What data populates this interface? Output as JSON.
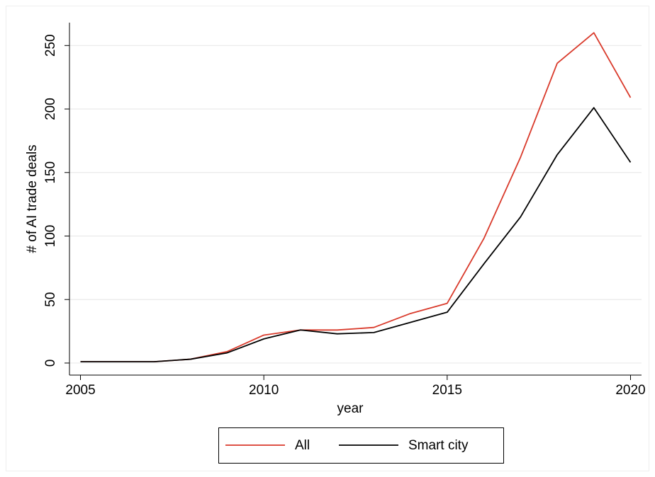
{
  "chart_data": {
    "type": "line",
    "x": [
      2005,
      2006,
      2007,
      2008,
      2009,
      2010,
      2011,
      2012,
      2013,
      2014,
      2015,
      2016,
      2017,
      2018,
      2019,
      2020
    ],
    "series": [
      {
        "name": "All",
        "color": "#d93a2b",
        "values": [
          1,
          1,
          1,
          3,
          9,
          22,
          26,
          26,
          28,
          39,
          47,
          98,
          162,
          236,
          260,
          209
        ]
      },
      {
        "name": "Smart city",
        "color": "#000000",
        "values": [
          1,
          1,
          1,
          3,
          8,
          19,
          26,
          23,
          24,
          32,
          40,
          78,
          115,
          164,
          201,
          158
        ]
      }
    ],
    "xlabel": "year",
    "ylabel": "# of AI trade deals",
    "xlim": [
      2004.7,
      2020.3
    ],
    "xticks": [
      2005,
      2010,
      2015,
      2020
    ],
    "ylim": [
      -9.5,
      268
    ],
    "yticks": [
      0,
      50,
      100,
      150,
      200,
      250
    ],
    "grid": true,
    "legend": "bottom"
  }
}
